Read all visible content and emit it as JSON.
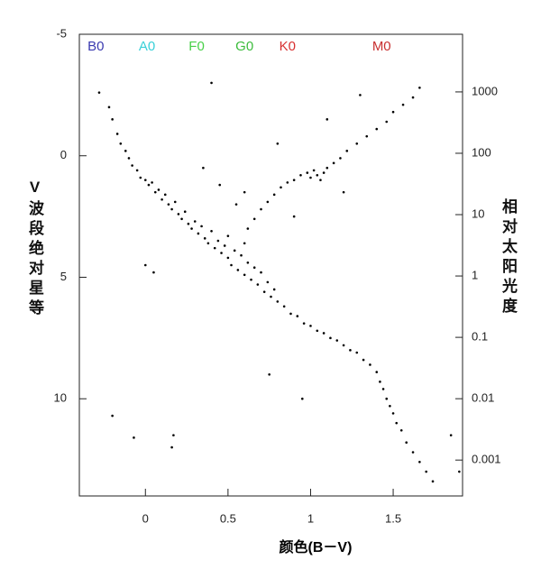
{
  "chart_data": {
    "type": "scatter",
    "x_label": "颜色(B－V)",
    "y_label": "V波段绝对星等",
    "y2_label": "相对太阳光度",
    "xlim": [
      -0.4,
      1.92
    ],
    "ylim": [
      -5,
      14
    ],
    "y_inverted": true,
    "y2lim": [
      0.00026,
      8700
    ],
    "y2_log": true,
    "xticks": [
      0,
      0.5,
      1,
      1.5
    ],
    "yticks": [
      -5,
      0,
      5,
      10
    ],
    "y2ticks": [
      1000,
      100,
      10,
      1,
      0.1,
      0.01,
      0.001
    ],
    "color": "#000000",
    "annotations": [
      {
        "text": "B0",
        "x": -0.3,
        "color": "#3a3ab0"
      },
      {
        "text": "A0",
        "x": 0.01,
        "color": "#38d0d8"
      },
      {
        "text": "F0",
        "x": 0.31,
        "color": "#48d048"
      },
      {
        "text": "G0",
        "x": 0.6,
        "color": "#3cbc3c"
      },
      {
        "text": "K0",
        "x": 0.86,
        "color": "#d83030"
      },
      {
        "text": "M0",
        "x": 1.43,
        "color": "#c83030"
      }
    ],
    "x": [
      -0.28,
      -0.22,
      -0.2,
      -0.17,
      -0.15,
      -0.12,
      -0.1,
      -0.08,
      -0.05,
      -0.03,
      0,
      0.02,
      0.04,
      0.06,
      0.08,
      0.1,
      0.12,
      0.14,
      0.16,
      0.18,
      0.2,
      0.22,
      0.24,
      0.26,
      0.28,
      0.3,
      0.32,
      0.34,
      0.36,
      0.38,
      0.4,
      0.42,
      0.44,
      0.46,
      0.48,
      0.5,
      0.5,
      0.52,
      0.54,
      0.56,
      0.58,
      0.6,
      0.6,
      0.62,
      0.64,
      0.66,
      0.68,
      0.7,
      0.72,
      0.74,
      0.76,
      0.78,
      0.8,
      0.84,
      0.88,
      0.92,
      0.96,
      1.0,
      1.04,
      1.08,
      1.12,
      1.16,
      1.2,
      1.24,
      1.28,
      1.32,
      1.36,
      1.4,
      1.42,
      1.44,
      1.46,
      1.48,
      1.5,
      1.52,
      1.55,
      1.58,
      1.62,
      1.66,
      1.7,
      1.74,
      0.62,
      0.66,
      0.7,
      0.74,
      0.78,
      0.82,
      0.86,
      0.9,
      0.94,
      0.98,
      1.0,
      1.02,
      1.04,
      1.06,
      1.08,
      1.1,
      1.14,
      1.18,
      1.22,
      1.28,
      1.34,
      1.4,
      1.46,
      1.5,
      1.56,
      1.62,
      1.66,
      0.55,
      0.6,
      0.45,
      0.35,
      0.9,
      1.2,
      1.3,
      1.1,
      0.8,
      -0.2,
      -0.07,
      0.17,
      0.16,
      0,
      0.05,
      0.4,
      0.75,
      0.95,
      1.9,
      1.85
    ],
    "y": [
      -2.6,
      -2.0,
      -1.5,
      -0.9,
      -0.5,
      -0.2,
      0.1,
      0.4,
      0.6,
      0.9,
      1.0,
      1.2,
      1.1,
      1.5,
      1.4,
      1.8,
      1.6,
      2.0,
      2.2,
      1.9,
      2.4,
      2.6,
      2.3,
      2.8,
      3.0,
      2.7,
      3.2,
      2.9,
      3.4,
      3.6,
      3.1,
      3.8,
      3.5,
      4.0,
      3.7,
      4.2,
      3.3,
      4.5,
      3.9,
      4.7,
      4.1,
      4.9,
      3.6,
      4.4,
      5.1,
      4.6,
      5.3,
      4.8,
      5.6,
      5.2,
      5.8,
      5.5,
      6.0,
      6.2,
      6.5,
      6.6,
      6.9,
      7.0,
      7.2,
      7.3,
      7.5,
      7.6,
      7.8,
      8.0,
      8.1,
      8.4,
      8.6,
      8.9,
      9.3,
      9.6,
      10.0,
      10.3,
      10.6,
      11.0,
      11.3,
      11.8,
      12.2,
      12.6,
      13.0,
      13.4,
      3.0,
      2.6,
      2.2,
      1.9,
      1.6,
      1.3,
      1.1,
      1.0,
      0.8,
      0.7,
      0.9,
      0.6,
      0.8,
      1.0,
      0.7,
      0.5,
      0.3,
      0.1,
      -0.2,
      -0.5,
      -0.8,
      -1.1,
      -1.4,
      -1.8,
      -2.1,
      -2.4,
      -2.8,
      2.0,
      1.5,
      1.2,
      0.5,
      2.5,
      1.5,
      -2.5,
      -1.5,
      -0.5,
      10.7,
      11.6,
      11.5,
      12.0,
      4.5,
      4.8,
      -3.0,
      9.0,
      10.0,
      13.0,
      11.5
    ]
  }
}
